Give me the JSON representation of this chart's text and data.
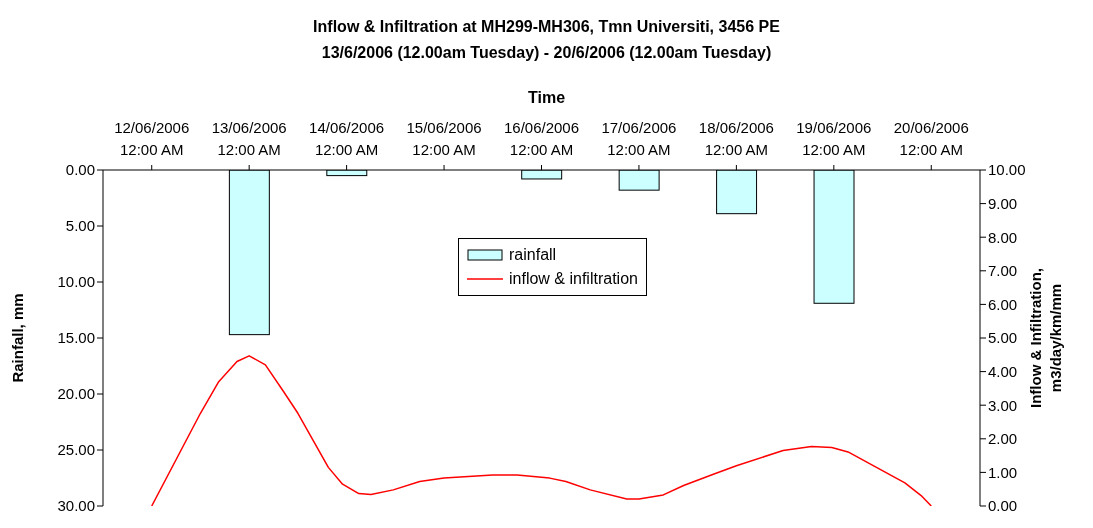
{
  "chart_data": {
    "type": "bar",
    "title": "Inflow & Infiltration at MH299-MH306, Tmn Universiti, 3456 PE",
    "subtitle": "13/6/2006 (12.00am Tuesday) - 20/6/2006 (12.00am Tuesday)",
    "xlabel": "Time",
    "ylabel": "Rainfall, mm",
    "y2label": "Inflow & Infiltration, m3/day/km/mm",
    "xlim": [
      "2006-06-11T12:00",
      "2006-06-20T12:00"
    ],
    "xticks": [
      {
        "value": "2006-06-12",
        "label": "12/06/2006 12:00 AM"
      },
      {
        "value": "2006-06-13",
        "label": "13/06/2006 12:00 AM"
      },
      {
        "value": "2006-06-14",
        "label": "14/06/2006 12:00 AM"
      },
      {
        "value": "2006-06-15",
        "label": "15/06/2006 12:00 AM"
      },
      {
        "value": "2006-06-16",
        "label": "16/06/2006 12:00 AM"
      },
      {
        "value": "2006-06-17",
        "label": "17/06/2006 12:00 AM"
      },
      {
        "value": "2006-06-18",
        "label": "18/06/2006 12:00 AM"
      },
      {
        "value": "2006-06-19",
        "label": "19/06/2006 12:00 AM"
      },
      {
        "value": "2006-06-20",
        "label": "20/06/2006 12:00 AM"
      }
    ],
    "ylim": [
      30,
      0
    ],
    "yticks": [
      {
        "value": 0,
        "label": "0.00"
      },
      {
        "value": 5,
        "label": "5.00"
      },
      {
        "value": 10,
        "label": "10.00"
      },
      {
        "value": 15,
        "label": "15.00"
      },
      {
        "value": 20,
        "label": "20.00"
      },
      {
        "value": 25,
        "label": "25.00"
      },
      {
        "value": 30,
        "label": "30.00"
      }
    ],
    "y2lim": [
      0,
      10
    ],
    "y2ticks": [
      {
        "value": 0,
        "label": "0.00"
      },
      {
        "value": 1,
        "label": "1.00"
      },
      {
        "value": 2,
        "label": "2.00"
      },
      {
        "value": 3,
        "label": "3.00"
      },
      {
        "value": 4,
        "label": "4.00"
      },
      {
        "value": 5,
        "label": "5.00"
      },
      {
        "value": 6,
        "label": "6.00"
      },
      {
        "value": 7,
        "label": "7.00"
      },
      {
        "value": 8,
        "label": "8.00"
      },
      {
        "value": 9,
        "label": "9.00"
      },
      {
        "value": 10,
        "label": "10.00"
      }
    ],
    "legend": "center",
    "marker": "none",
    "line_style": "solid",
    "series": [
      {
        "name": "rainfall",
        "type": "bar",
        "color": "#ccffff",
        "x": [
          "2006-06-13",
          "2006-06-14",
          "2006-06-16",
          "2006-06-17",
          "2006-06-18",
          "2006-06-19"
        ],
        "values": [
          14.7,
          0.5,
          0.8,
          1.8,
          3.9,
          11.9
        ]
      },
      {
        "name": "inflow & infiltration",
        "type": "line",
        "axis": "y2",
        "color": "#ff0000",
        "x": [
          "2006-06-12T00:00",
          "2006-06-12T12:00",
          "2006-06-12T16:30",
          "2006-06-12T21:00",
          "2006-06-13T00:00",
          "2006-06-13T04:00",
          "2006-06-13T08:30",
          "2006-06-13T12:00",
          "2006-06-13T19:30",
          "2006-06-13T23:00",
          "2006-06-14T03:00",
          "2006-06-14T06:00",
          "2006-06-14T11:30",
          "2006-06-14T18:00",
          "2006-06-15T00:00",
          "2006-06-15T12:00",
          "2006-06-15T18:00",
          "2006-06-16T02:00",
          "2006-06-16T06:00",
          "2006-06-16T12:00",
          "2006-06-16T21:00",
          "2006-06-17T00:00",
          "2006-06-17T06:00",
          "2006-06-17T11:00",
          "2006-06-17T18:00",
          "2006-06-18T00:00",
          "2006-06-18T11:30",
          "2006-06-18T18:30",
          "2006-06-18T23:30",
          "2006-06-19T03:30",
          "2006-06-19T10:30",
          "2006-06-19T17:30",
          "2006-06-19T21:30",
          "2006-06-20T00:00"
        ],
        "values": [
          0,
          2.76,
          3.7,
          4.3,
          4.47,
          4.2,
          3.4,
          2.76,
          1.15,
          0.65,
          0.37,
          0.34,
          0.48,
          0.73,
          0.83,
          0.92,
          0.92,
          0.83,
          0.73,
          0.48,
          0.21,
          0.21,
          0.33,
          0.61,
          0.93,
          1.2,
          1.65,
          1.77,
          1.74,
          1.61,
          1.15,
          0.69,
          0.31,
          0
        ]
      }
    ]
  }
}
